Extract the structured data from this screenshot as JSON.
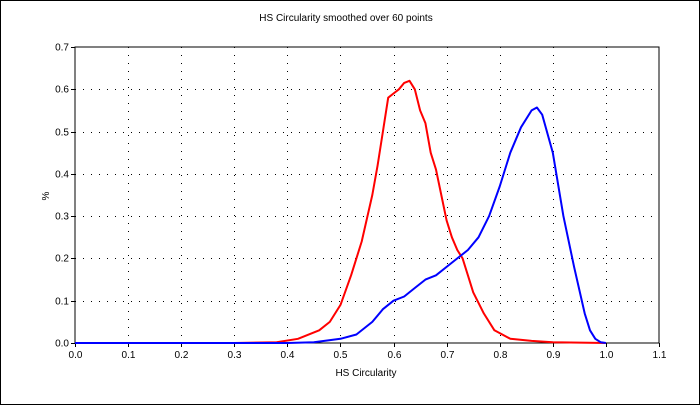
{
  "chart_data": {
    "type": "line",
    "title": "HS Circularity smoothed over 60 points",
    "xlabel": "HS Circularity",
    "ylabel": "%",
    "xlim": [
      0.0,
      1.1
    ],
    "ylim": [
      0.0,
      0.7
    ],
    "xticks": [
      "0.0",
      "0.1",
      "0.2",
      "0.3",
      "0.4",
      "0.5",
      "0.6",
      "0.7",
      "0.8",
      "0.9",
      "1.0",
      "1.1"
    ],
    "yticks": [
      "0.0",
      "0.1",
      "0.2",
      "0.3",
      "0.4",
      "0.5",
      "0.6",
      "0.7"
    ],
    "grid": true,
    "series": [
      {
        "name": "red",
        "color": "#ff0000",
        "x": [
          0.0,
          0.3,
          0.38,
          0.42,
          0.46,
          0.48,
          0.5,
          0.52,
          0.54,
          0.56,
          0.57,
          0.58,
          0.59,
          0.6,
          0.61,
          0.62,
          0.63,
          0.64,
          0.65,
          0.66,
          0.67,
          0.68,
          0.69,
          0.7,
          0.71,
          0.72,
          0.73,
          0.74,
          0.75,
          0.77,
          0.79,
          0.82,
          0.86,
          0.9,
          1.0
        ],
        "y": [
          0.0,
          0.0,
          0.002,
          0.01,
          0.03,
          0.05,
          0.09,
          0.16,
          0.24,
          0.35,
          0.42,
          0.5,
          0.58,
          0.59,
          0.6,
          0.615,
          0.62,
          0.6,
          0.55,
          0.52,
          0.45,
          0.41,
          0.35,
          0.29,
          0.25,
          0.22,
          0.2,
          0.16,
          0.12,
          0.07,
          0.03,
          0.01,
          0.005,
          0.002,
          0.0
        ]
      },
      {
        "name": "blue",
        "color": "#0000ff",
        "x": [
          0.0,
          0.4,
          0.45,
          0.5,
          0.53,
          0.56,
          0.58,
          0.6,
          0.62,
          0.64,
          0.66,
          0.68,
          0.7,
          0.72,
          0.74,
          0.76,
          0.78,
          0.8,
          0.82,
          0.84,
          0.86,
          0.87,
          0.88,
          0.9,
          0.92,
          0.94,
          0.96,
          0.97,
          0.98,
          0.99,
          1.0
        ],
        "y": [
          0.0,
          0.0,
          0.002,
          0.01,
          0.02,
          0.05,
          0.08,
          0.1,
          0.11,
          0.13,
          0.15,
          0.16,
          0.18,
          0.2,
          0.22,
          0.25,
          0.3,
          0.37,
          0.45,
          0.51,
          0.55,
          0.557,
          0.54,
          0.45,
          0.3,
          0.18,
          0.07,
          0.03,
          0.01,
          0.002,
          0.0
        ]
      }
    ]
  }
}
